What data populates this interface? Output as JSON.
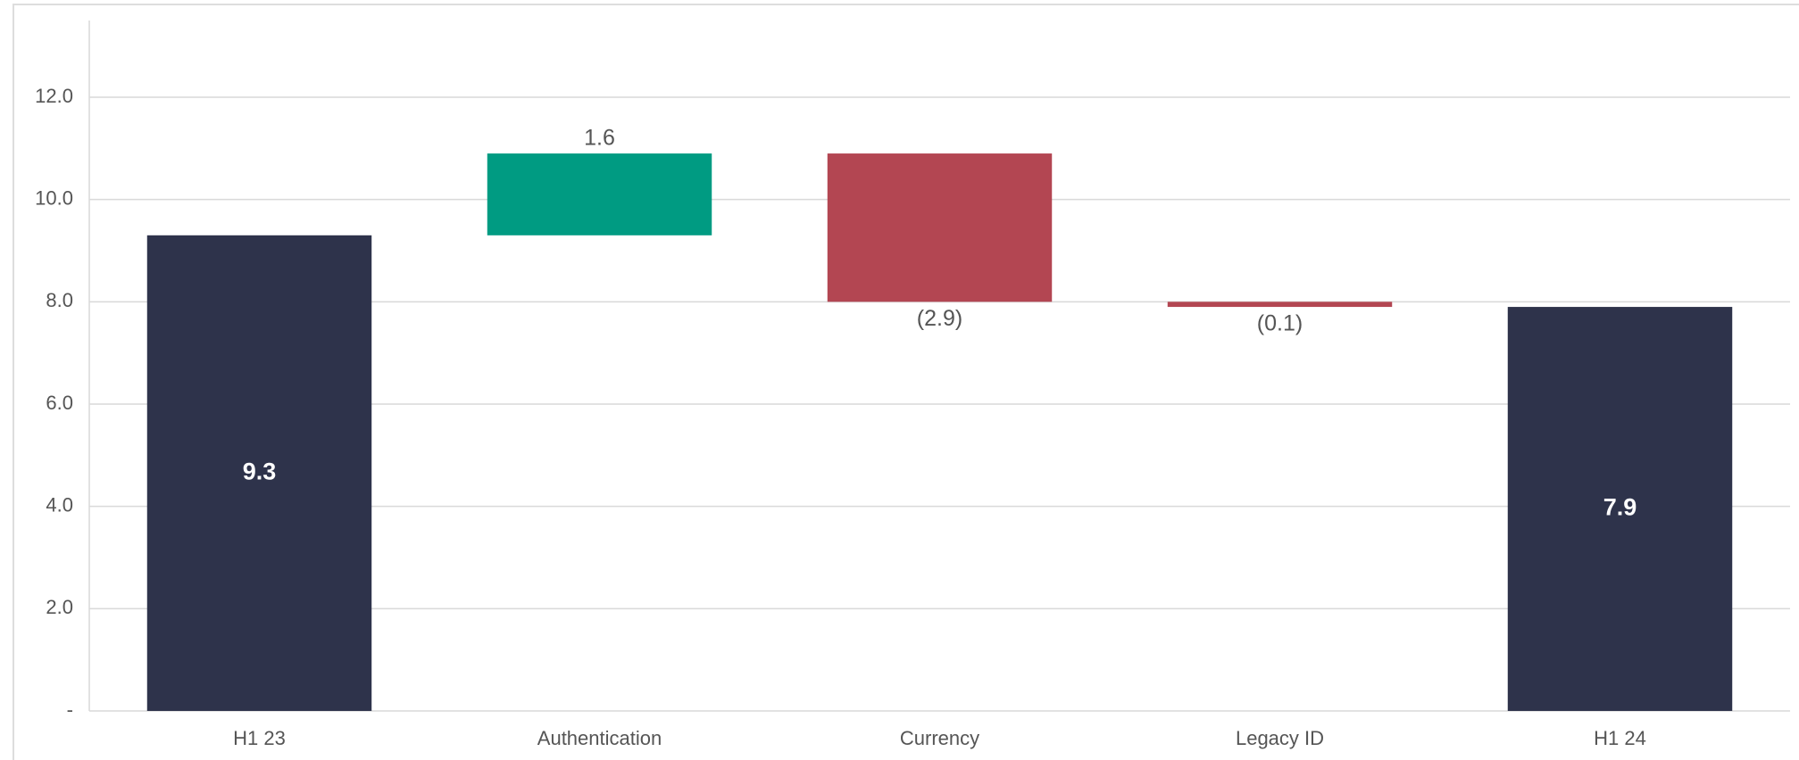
{
  "chart_data": {
    "type": "waterfall",
    "categories": [
      "H1 23",
      "Authentication",
      "Currency",
      "Legacy ID",
      "H1 24"
    ],
    "values": [
      9.3,
      1.6,
      -2.9,
      -0.1,
      7.9
    ],
    "value_labels": [
      "9.3",
      "1.6",
      "(2.9)",
      "(0.1)",
      "7.9"
    ],
    "measure": [
      "absolute",
      "relative",
      "relative",
      "relative",
      "absolute"
    ],
    "total_color": "#2e334b",
    "increase_color": "#009b82",
    "decrease_color": "#b34652",
    "ylim": [
      0,
      13.5
    ],
    "yticks": [
      {
        "value": 0,
        "label": "-"
      },
      {
        "value": 2,
        "label": "2.0"
      },
      {
        "value": 4,
        "label": "4.0"
      },
      {
        "value": 6,
        "label": "6.0"
      },
      {
        "value": 8,
        "label": "8.0"
      },
      {
        "value": 10,
        "label": "10.0"
      },
      {
        "value": 12,
        "label": "12.0"
      }
    ],
    "grid": true
  }
}
